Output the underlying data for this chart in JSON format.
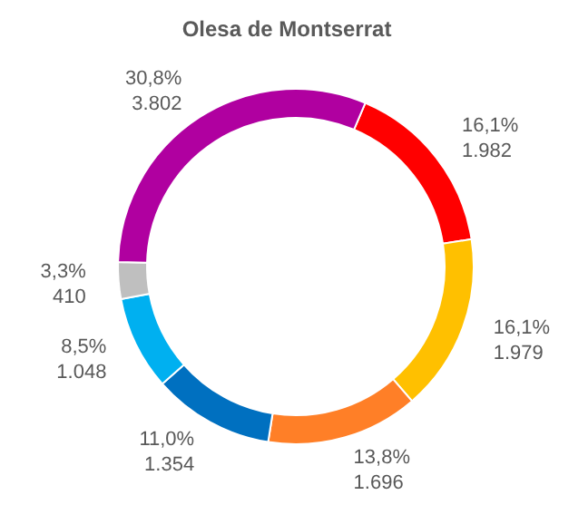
{
  "chart_data": {
    "type": "donut",
    "title": "Olesa de Montserrat",
    "categories": [
      null,
      null,
      null,
      null,
      null,
      null,
      null
    ],
    "values": [
      1982,
      1979,
      1696,
      1354,
      1048,
      410,
      3802
    ],
    "colors": [
      "#ff0000",
      "#ffc000",
      "#ff7f27",
      "#0070c0",
      "#00b0f0",
      "#bfbfbf",
      "#b000a0"
    ],
    "value_labels": [
      "16,1%\n1.982",
      "16,1%\n1.979",
      "13,8%\n1.696",
      "11,0%\n1.354",
      "8,5%\n1.048",
      "3,3%\n410",
      "30,8%\n3.802"
    ],
    "legend": false
  }
}
